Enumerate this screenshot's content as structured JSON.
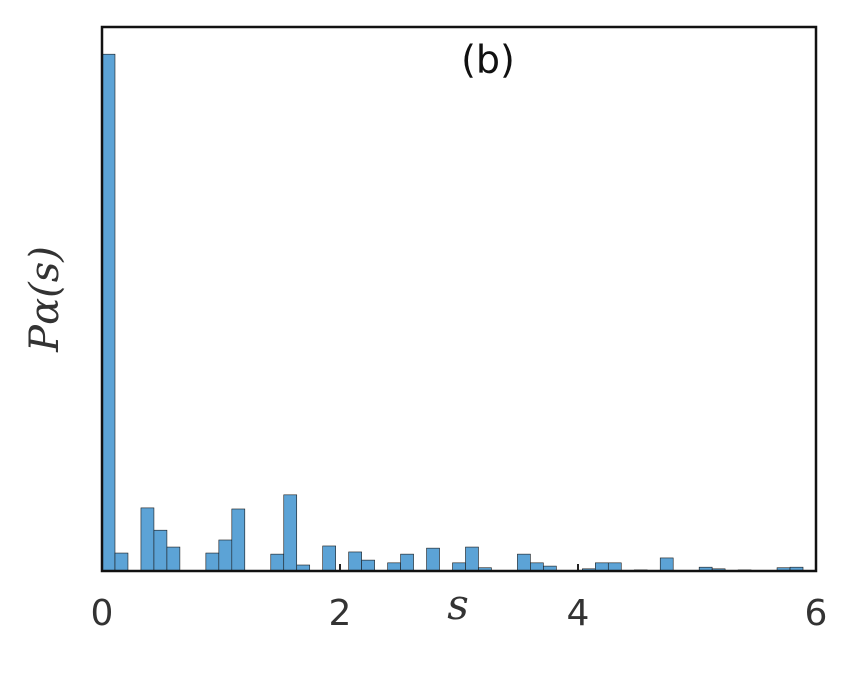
{
  "chart_data": {
    "type": "histogram",
    "title": "(b)",
    "xlabel": "s",
    "ylabel": "Pα(s)",
    "bins": [
      0,
      0.1091,
      0.2182,
      0.3273,
      0.4364,
      0.5455,
      0.6545,
      0.7636,
      0.8727,
      0.9818,
      1.0909,
      1.2,
      1.3091,
      1.4182,
      1.5273,
      1.6364,
      1.7455,
      1.8545,
      1.9636,
      2.0727,
      2.1818,
      2.2909,
      2.4,
      2.5091,
      2.6182,
      2.7273,
      2.8364,
      2.9455,
      3.0545,
      3.1636,
      3.2727,
      3.3818,
      3.4909,
      3.6,
      3.7091,
      3.8182,
      3.9273,
      4.0364,
      4.1455,
      4.2545,
      4.3636,
      4.4727,
      4.5818,
      4.6909,
      4.8,
      4.9091,
      5.0182,
      5.1273,
      5.2364,
      5.3455,
      5.4545,
      5.5636,
      5.6727,
      5.7818,
      5.8909,
      6
    ],
    "values": [
      95,
      3.3,
      0,
      11.6,
      7.5,
      4.4,
      0,
      0,
      3.3,
      5.7,
      11.4,
      0,
      0,
      3.1,
      14,
      1.1,
      0,
      4.6,
      0,
      3.5,
      2,
      0,
      1.5,
      3.1,
      0,
      4.2,
      0,
      1.5,
      4.4,
      0.6,
      0,
      0,
      3.1,
      1.5,
      0.9,
      0,
      0,
      0.4,
      1.5,
      1.5,
      0,
      0.2,
      0,
      2.4,
      0,
      0,
      0.7,
      0.4,
      0,
      0.2,
      0,
      0,
      0.6,
      0.7,
      0
    ],
    "color": "#5ca3d6",
    "xlim": [
      0,
      6
    ],
    "ylim": [
      0,
      100
    ],
    "xticks": [
      0,
      2,
      4,
      6
    ]
  }
}
